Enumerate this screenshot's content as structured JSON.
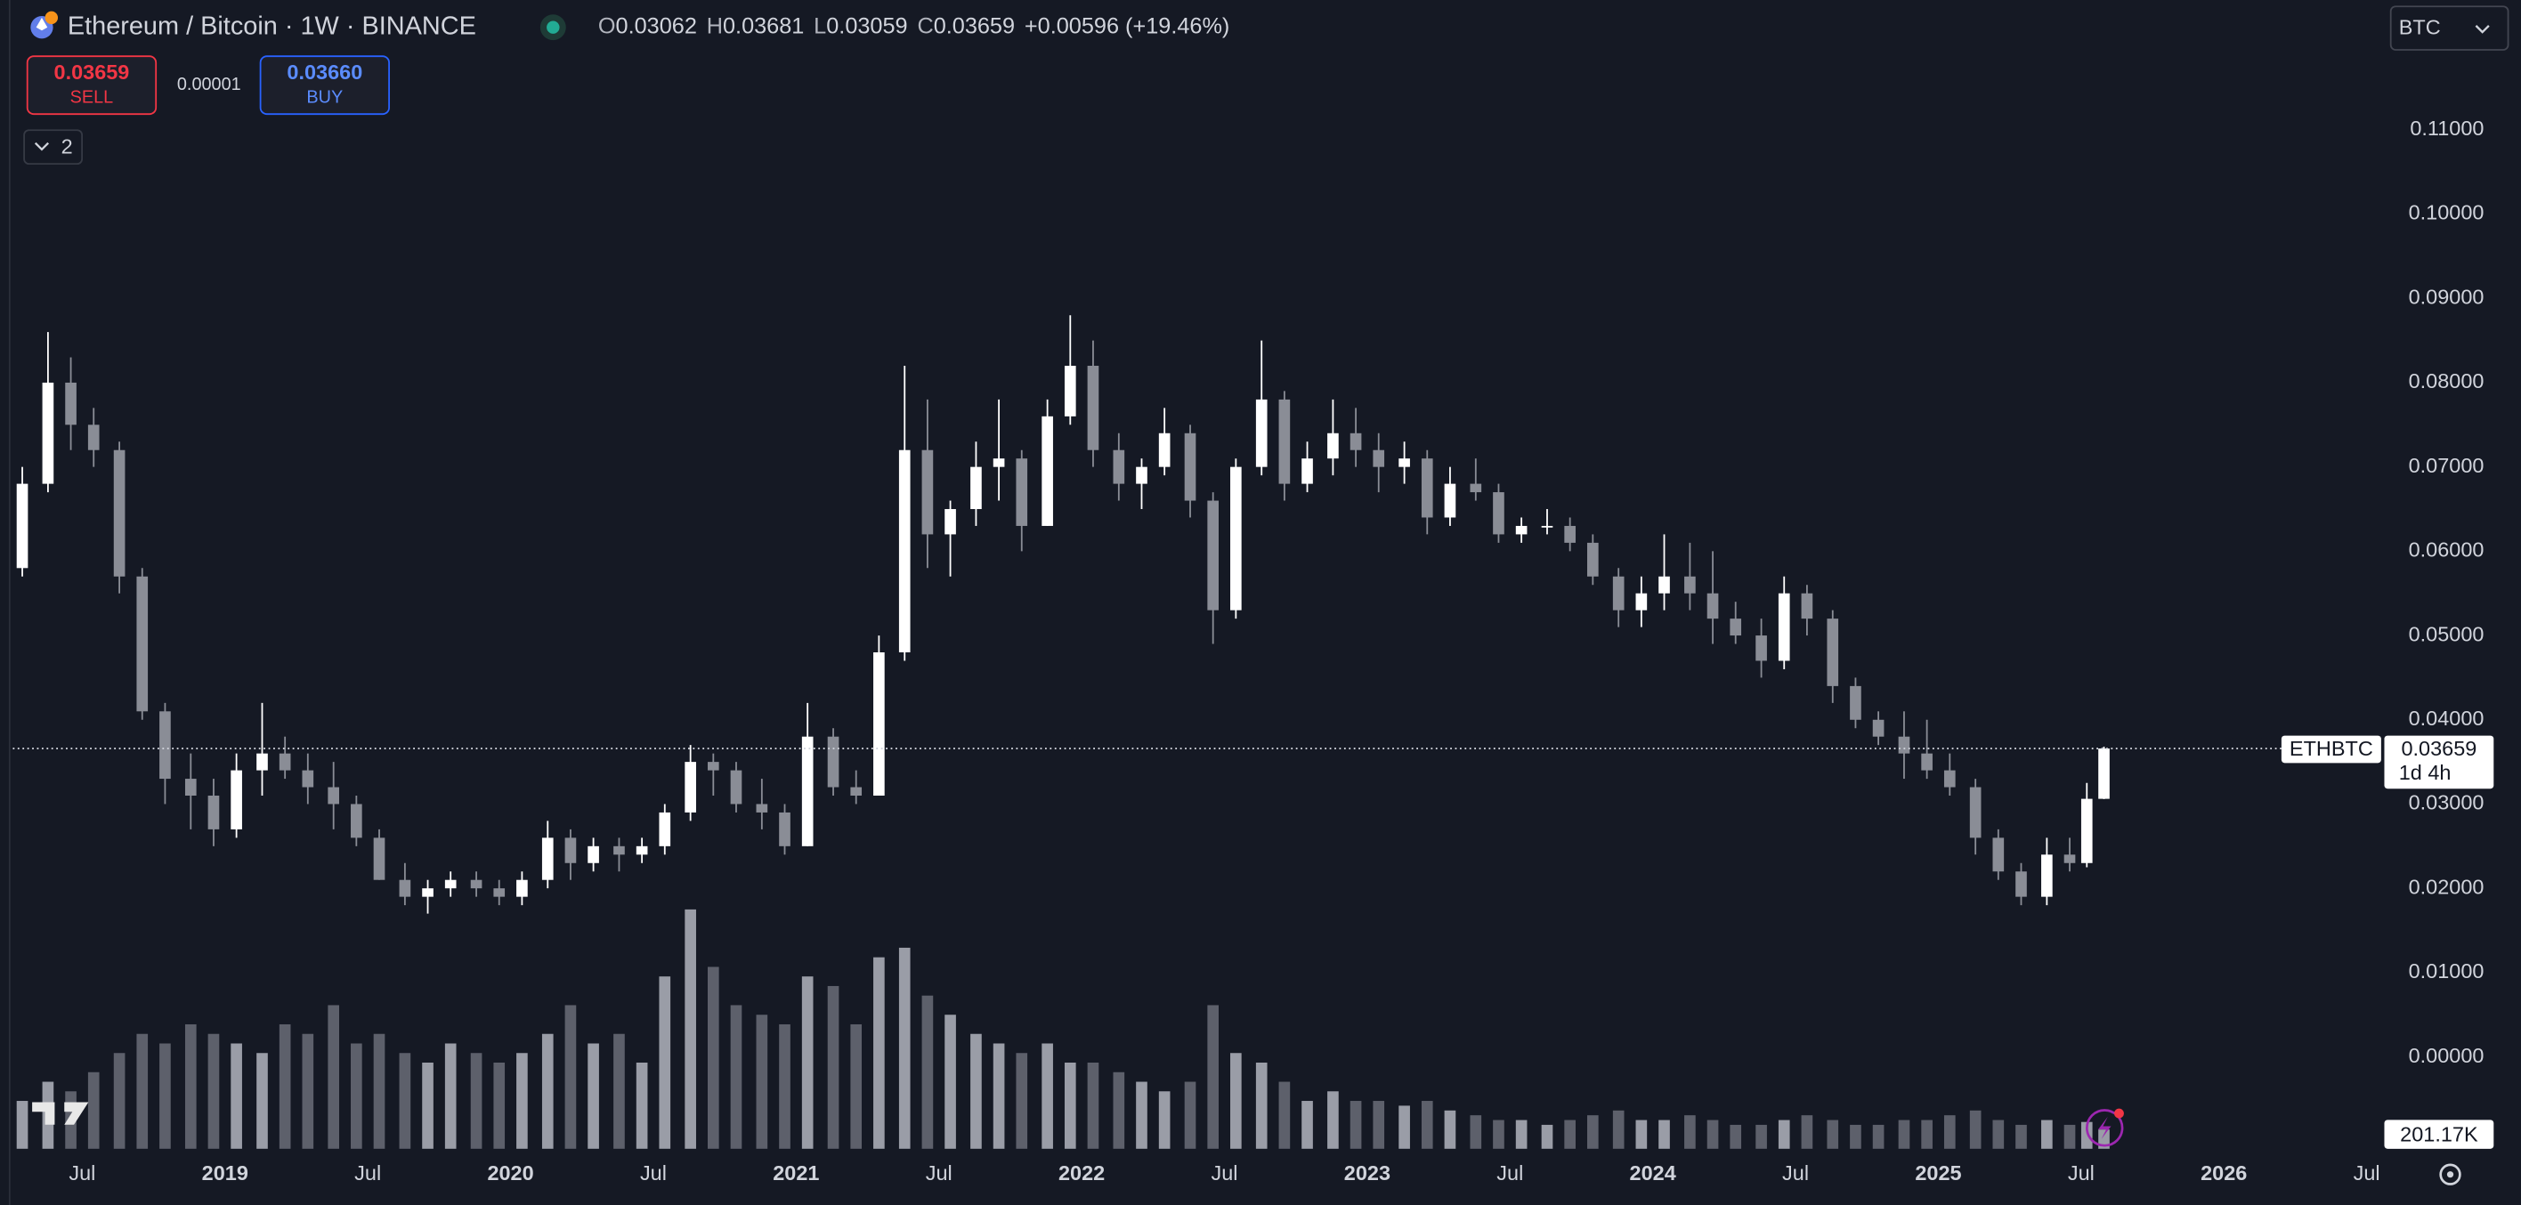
{
  "header": {
    "symbol": "Ethereum / Bitcoin · 1W · BINANCE",
    "o": "O",
    "h": "H",
    "l": "L",
    "c": "C",
    "change": "+0.00596 (+19.46%)"
  },
  "trading_panel": {
    "sell": "SELL",
    "spread": "0.00001",
    "buy_price": "0.03660",
    "buy": "BUY"
  },
  "indicators_toggle": "2",
  "currency": "BTC",
  "price_tag": {
    "symbol": "ETHBTC",
    "countdown": "1d 4h"
  },
  "chart_data": {
    "type": "candlestick",
    "x": [
      2018.29,
      2018.38,
      2018.46,
      2018.54,
      2018.63,
      2018.71,
      2018.79,
      2018.88,
      2018.96,
      2019.04,
      2019.13,
      2019.21,
      2019.29,
      2019.38,
      2019.46,
      2019.54,
      2019.63,
      2019.71,
      2019.79,
      2019.88,
      2019.96,
      2020.04,
      2020.13,
      2020.21,
      2020.29,
      2020.38,
      2020.46,
      2020.54,
      2020.63,
      2020.71,
      2020.79,
      2020.88,
      2020.96,
      2021.04,
      2021.13,
      2021.21,
      2021.29,
      2021.38,
      2021.46,
      2021.54,
      2021.63,
      2021.71,
      2021.79,
      2021.88,
      2021.96,
      2022.04,
      2022.13,
      2022.21,
      2022.29,
      2022.38,
      2022.46,
      2022.54,
      2022.63,
      2022.71,
      2022.79,
      2022.88,
      2022.96,
      2023.04,
      2023.13,
      2023.21,
      2023.29,
      2023.38,
      2023.46,
      2023.54,
      2023.63,
      2023.71,
      2023.79,
      2023.88,
      2023.96,
      2024.04,
      2024.13,
      2024.21,
      2024.29,
      2024.38,
      2024.46,
      2024.54,
      2024.63,
      2024.71,
      2024.79,
      2024.88,
      2024.96,
      2025.04,
      2025.13,
      2025.21,
      2025.29,
      2025.38,
      2025.46,
      2025.52,
      2025.58
    ],
    "open": [
      0.058,
      0.068,
      0.08,
      0.075,
      0.072,
      0.057,
      0.041,
      0.033,
      0.031,
      0.027,
      0.034,
      0.036,
      0.034,
      0.032,
      0.03,
      0.026,
      0.021,
      0.019,
      0.02,
      0.021,
      0.02,
      0.019,
      0.021,
      0.026,
      0.023,
      0.025,
      0.024,
      0.025,
      0.029,
      0.035,
      0.034,
      0.03,
      0.029,
      0.025,
      0.038,
      0.032,
      0.031,
      0.048,
      0.072,
      0.062,
      0.065,
      0.07,
      0.071,
      0.063,
      0.076,
      0.082,
      0.072,
      0.068,
      0.07,
      0.074,
      0.066,
      0.053,
      0.07,
      0.078,
      0.068,
      0.071,
      0.074,
      0.072,
      0.07,
      0.071,
      0.064,
      0.068,
      0.067,
      0.062,
      0.063,
      0.063,
      0.061,
      0.057,
      0.053,
      0.055,
      0.057,
      0.055,
      0.052,
      0.05,
      0.047,
      0.055,
      0.052,
      0.044,
      0.04,
      0.038,
      0.036,
      0.034,
      0.032,
      0.026,
      0.022,
      0.019,
      0.024,
      0.023,
      0.03062
    ],
    "high": [
      0.07,
      0.086,
      0.083,
      0.077,
      0.073,
      0.058,
      0.042,
      0.036,
      0.033,
      0.036,
      0.042,
      0.038,
      0.036,
      0.035,
      0.031,
      0.027,
      0.023,
      0.021,
      0.022,
      0.022,
      0.021,
      0.022,
      0.028,
      0.027,
      0.026,
      0.026,
      0.026,
      0.03,
      0.037,
      0.036,
      0.035,
      0.033,
      0.03,
      0.042,
      0.039,
      0.034,
      0.05,
      0.082,
      0.078,
      0.066,
      0.073,
      0.078,
      0.072,
      0.078,
      0.088,
      0.085,
      0.074,
      0.071,
      0.077,
      0.075,
      0.067,
      0.071,
      0.085,
      0.079,
      0.073,
      0.078,
      0.077,
      0.074,
      0.073,
      0.072,
      0.07,
      0.071,
      0.068,
      0.064,
      0.065,
      0.064,
      0.062,
      0.058,
      0.057,
      0.062,
      0.061,
      0.06,
      0.054,
      0.052,
      0.057,
      0.056,
      0.053,
      0.045,
      0.041,
      0.041,
      0.04,
      0.036,
      0.033,
      0.027,
      0.023,
      0.026,
      0.026,
      0.0325,
      0.03681
    ],
    "low": [
      0.057,
      0.067,
      0.072,
      0.07,
      0.055,
      0.04,
      0.03,
      0.027,
      0.025,
      0.026,
      0.031,
      0.033,
      0.03,
      0.027,
      0.025,
      0.021,
      0.018,
      0.017,
      0.019,
      0.019,
      0.018,
      0.018,
      0.02,
      0.021,
      0.022,
      0.022,
      0.023,
      0.024,
      0.028,
      0.031,
      0.029,
      0.027,
      0.024,
      0.025,
      0.031,
      0.03,
      0.031,
      0.047,
      0.058,
      0.057,
      0.063,
      0.066,
      0.06,
      0.063,
      0.075,
      0.07,
      0.066,
      0.065,
      0.069,
      0.064,
      0.049,
      0.052,
      0.069,
      0.066,
      0.067,
      0.069,
      0.07,
      0.067,
      0.068,
      0.062,
      0.063,
      0.066,
      0.061,
      0.061,
      0.062,
      0.06,
      0.056,
      0.051,
      0.051,
      0.053,
      0.053,
      0.049,
      0.049,
      0.045,
      0.046,
      0.05,
      0.042,
      0.039,
      0.037,
      0.033,
      0.033,
      0.031,
      0.024,
      0.021,
      0.018,
      0.018,
      0.022,
      0.0225,
      0.03059
    ],
    "close": [
      0.068,
      0.08,
      0.075,
      0.072,
      0.057,
      0.041,
      0.033,
      0.031,
      0.027,
      0.034,
      0.036,
      0.034,
      0.032,
      0.03,
      0.026,
      0.021,
      0.019,
      0.02,
      0.021,
      0.02,
      0.019,
      0.021,
      0.026,
      0.023,
      0.025,
      0.024,
      0.025,
      0.029,
      0.035,
      0.034,
      0.03,
      0.029,
      0.025,
      0.038,
      0.032,
      0.031,
      0.048,
      0.072,
      0.062,
      0.065,
      0.07,
      0.071,
      0.063,
      0.076,
      0.082,
      0.072,
      0.068,
      0.07,
      0.074,
      0.066,
      0.053,
      0.07,
      0.078,
      0.068,
      0.071,
      0.074,
      0.072,
      0.07,
      0.071,
      0.064,
      0.068,
      0.067,
      0.062,
      0.063,
      0.063,
      0.061,
      0.057,
      0.053,
      0.055,
      0.057,
      0.055,
      0.052,
      0.05,
      0.047,
      0.055,
      0.052,
      0.044,
      0.04,
      0.038,
      0.036,
      0.034,
      0.032,
      0.026,
      0.022,
      0.019,
      0.024,
      0.023,
      0.03062,
      0.03659
    ],
    "volume": [
      500000,
      700000,
      600000,
      800000,
      1000000,
      1200000,
      1100000,
      1300000,
      1200000,
      1100000,
      1000000,
      1300000,
      1200000,
      1500000,
      1100000,
      1200000,
      1000000,
      900000,
      1100000,
      1000000,
      900000,
      1000000,
      1200000,
      1500000,
      1100000,
      1200000,
      900000,
      1800000,
      2500000,
      1900000,
      1500000,
      1400000,
      1300000,
      1800000,
      1700000,
      1300000,
      2000000,
      2100000,
      1600000,
      1400000,
      1200000,
      1100000,
      1000000,
      1100000,
      900000,
      900000,
      800000,
      700000,
      600000,
      700000,
      1500000,
      1000000,
      900000,
      700000,
      500000,
      600000,
      500000,
      500000,
      450000,
      500000,
      400000,
      350000,
      300000,
      300000,
      250000,
      300000,
      350000,
      400000,
      300000,
      300000,
      350000,
      300000,
      250000,
      250000,
      300000,
      350000,
      300000,
      250000,
      250000,
      300000,
      300000,
      350000,
      400000,
      300000,
      250000,
      300000,
      250000,
      280000,
      201170
    ],
    "volume_label": "201.17K",
    "up_color": "#ffffff",
    "down_color": "#8a8d96",
    "volume_up_color": "#b2b5be",
    "volume_down_color": "#6a6d78",
    "ylim": [
      -0.0109,
      0.1254
    ],
    "yticks": [
      {
        "value": 0,
        "label": "0.00000"
      },
      {
        "value": 0.01,
        "label": "0.01000"
      },
      {
        "value": 0.02,
        "label": "0.02000"
      },
      {
        "value": 0.03,
        "label": "0.03000"
      },
      {
        "value": 0.04,
        "label": "0.04000"
      },
      {
        "value": 0.05,
        "label": "0.05000"
      },
      {
        "value": 0.06,
        "label": "0.06000"
      },
      {
        "value": 0.07,
        "label": "0.07000"
      },
      {
        "value": 0.08,
        "label": "0.08000"
      },
      {
        "value": 0.09,
        "label": "0.09000"
      },
      {
        "value": 0.1,
        "label": "0.10000"
      },
      {
        "value": 0.11,
        "label": "0.11000"
      }
    ],
    "vlim": [
      0,
      12000000
    ],
    "xlim": [
      2018.257,
      2026.545
    ],
    "xticks": [
      {
        "value": 2018.5,
        "label": "Jul"
      },
      2019,
      {
        "value": 2019.5,
        "label": "Jul"
      },
      2020,
      {
        "value": 2020.5,
        "label": "Jul"
      },
      2021,
      {
        "value": 2021.5,
        "label": "Jul"
      },
      2022,
      {
        "value": 2022.5,
        "label": "Jul"
      },
      2023,
      {
        "value": 2023.5,
        "label": "Jul"
      },
      2024,
      {
        "value": 2024.5,
        "label": "Jul"
      },
      2025,
      {
        "value": 2025.5,
        "label": "Jul"
      },
      2026,
      {
        "value": 2026.5,
        "label": "Jul"
      }
    ],
    "grid": false
  }
}
